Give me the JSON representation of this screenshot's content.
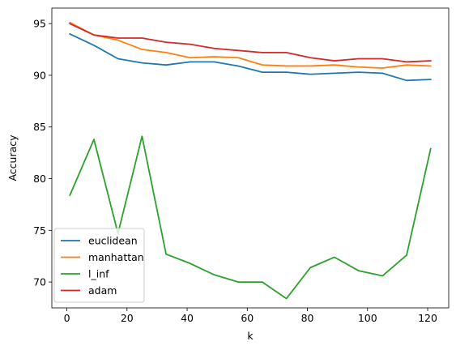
{
  "chart_data": {
    "type": "line",
    "title": "",
    "xlabel": "k",
    "ylabel": "Accuracy",
    "xlim": [
      -5,
      127
    ],
    "ylim": [
      67.5,
      96.5
    ],
    "x_ticks": [
      0,
      20,
      40,
      60,
      80,
      100,
      120
    ],
    "y_ticks": [
      70,
      75,
      80,
      85,
      90,
      95
    ],
    "grid": false,
    "legend_position": "lower-left",
    "x": [
      1,
      9,
      17,
      25,
      33,
      41,
      49,
      57,
      65,
      73,
      81,
      89,
      97,
      105,
      113,
      121
    ],
    "series": [
      {
        "name": "euclidean",
        "color": "#1f77b4",
        "values": [
          94.0,
          92.9,
          91.6,
          91.2,
          91.0,
          91.3,
          91.3,
          90.9,
          90.3,
          90.3,
          90.1,
          90.2,
          90.3,
          90.2,
          89.5,
          89.6
        ]
      },
      {
        "name": "manhattan",
        "color": "#ff7f0e",
        "values": [
          95.1,
          93.9,
          93.4,
          92.5,
          92.2,
          91.7,
          91.8,
          91.7,
          91.0,
          90.9,
          90.9,
          91.0,
          90.8,
          90.7,
          91.0,
          90.9
        ]
      },
      {
        "name": "l_inf",
        "color": "#2ca02c",
        "values": [
          78.4,
          83.8,
          74.7,
          84.1,
          72.7,
          71.8,
          70.7,
          70.0,
          70.0,
          68.4,
          71.4,
          72.4,
          71.1,
          70.6,
          72.6,
          82.9
        ]
      },
      {
        "name": "adam",
        "color": "#d62728",
        "values": [
          95.0,
          93.9,
          93.6,
          93.6,
          93.2,
          93.0,
          92.6,
          92.4,
          92.2,
          92.2,
          91.7,
          91.4,
          91.6,
          91.6,
          91.3,
          91.4
        ]
      }
    ]
  }
}
